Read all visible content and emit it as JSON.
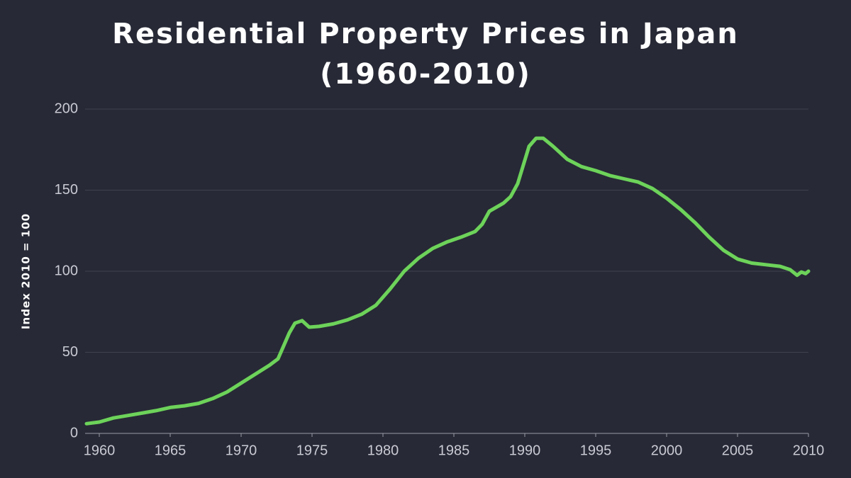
{
  "chart_data": {
    "type": "line",
    "title": "Residential Property Prices in Japan",
    "subtitle": "(1960-2010)",
    "y_label": "Index 2010 = 100",
    "x": [
      1959.1,
      1960,
      1961,
      1962,
      1963,
      1964,
      1965,
      1966,
      1967,
      1968,
      1969,
      1970,
      1971,
      1972,
      1972.6,
      1973.4,
      1973.8,
      1974.3,
      1974.8,
      1975.5,
      1976.5,
      1977.5,
      1978.5,
      1979.5,
      1980.5,
      1981.5,
      1982.5,
      1983.5,
      1984.5,
      1985.5,
      1986.5,
      1987,
      1987.5,
      1988.5,
      1989,
      1989.5,
      1990.3,
      1990.8,
      1991.3,
      1992,
      1993,
      1994,
      1995,
      1996,
      1997,
      1998,
      1999,
      2000,
      2001,
      2002,
      2003,
      2004,
      2005,
      2006,
      2007,
      2008,
      2008.7,
      2009.2,
      2009.5,
      2009.8,
      2010
    ],
    "series": [
      {
        "name": "Residential Property Prices",
        "color": "#6dd35a",
        "values": [
          6,
          7,
          9.5,
          11,
          12.5,
          14,
          16,
          17,
          18.5,
          21.5,
          25.5,
          31,
          36.5,
          42,
          46,
          62,
          68,
          69.5,
          65.5,
          66,
          67.5,
          70,
          73.5,
          79,
          89,
          100,
          108,
          114,
          118,
          121,
          124.5,
          129,
          137,
          142,
          146,
          154,
          177,
          182,
          182,
          177,
          169,
          164.5,
          162,
          159,
          157,
          155,
          151,
          145,
          138,
          130,
          121,
          113,
          107.5,
          105,
          104,
          103,
          101,
          97.5,
          99.5,
          98.5,
          100
        ]
      }
    ],
    "xlim": [
      1959,
      2010
    ],
    "xticks": [
      1960,
      1965,
      1970,
      1975,
      1980,
      1985,
      1990,
      1995,
      2000,
      2005,
      2010
    ],
    "ylim": [
      0,
      200
    ],
    "yticks": [
      0,
      50,
      100,
      150,
      200
    ],
    "grid": true
  }
}
